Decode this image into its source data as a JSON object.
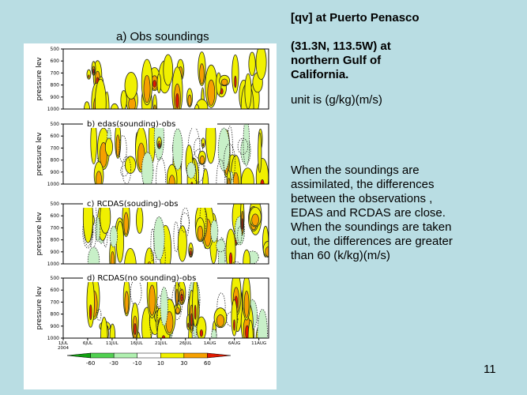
{
  "slide": {
    "title": "[qv] at Puerto Penasco",
    "subtitle": "(31.3N, 113.5W) at northern Gulf of California.",
    "unit": "unit is (g/kg)(m/s)",
    "body": "When the soundings are assimilated, the differences between the observations , EDAS and RCDAS are close. When the soundings are taken out, the differences are greater than 60 (k/kg)(m/s)",
    "page_number": "11"
  },
  "figure": {
    "panel_a_label": "a)  Obs soundings",
    "panel_labels": [
      "b) edas(sounding)-obs",
      "c) RCDAS(souding)-obs",
      "d) RCDAS(no sounding)-obs"
    ],
    "y_axis_label": "pressure lev",
    "y_ticks": [
      "500",
      "600",
      "700",
      "800",
      "900",
      "1000"
    ],
    "x_ticks": [
      "1JUL\n2004",
      "6JUL",
      "11JUL",
      "16JUL",
      "21JUL",
      "26JUL",
      "1AUG",
      "6AUG",
      "11AUG"
    ],
    "colorbar_labels": [
      "-60",
      "-30",
      "-10",
      "10",
      "30",
      "60"
    ]
  }
}
